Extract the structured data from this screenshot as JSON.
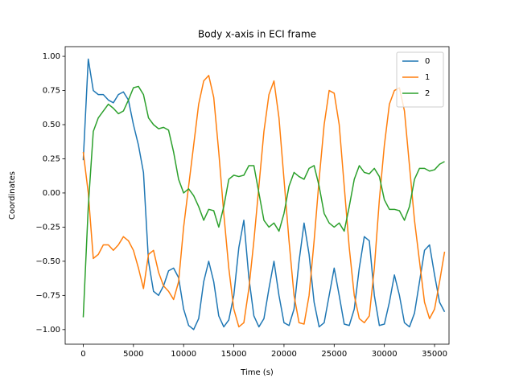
{
  "chart_data": {
    "type": "line",
    "title": "Body x-axis in ECI frame",
    "x_label": "Time (s)",
    "y_label": "Coordinates",
    "x": [
      0,
      500,
      1000,
      1500,
      2000,
      2500,
      3000,
      3500,
      4000,
      4500,
      5000,
      5500,
      6000,
      6500,
      7000,
      7500,
      8000,
      8500,
      9000,
      9500,
      10000,
      10500,
      11000,
      11500,
      12000,
      12500,
      13000,
      13500,
      14000,
      14500,
      15000,
      15500,
      16000,
      16500,
      17000,
      17500,
      18000,
      18500,
      19000,
      19500,
      20000,
      20500,
      21000,
      21500,
      22000,
      22500,
      23000,
      23500,
      24000,
      24500,
      25000,
      25500,
      26000,
      26500,
      27000,
      27500,
      28000,
      28500,
      29000,
      29500,
      30000,
      30500,
      31000,
      31500,
      32000,
      32500,
      33000,
      33500,
      34000,
      34500,
      35000,
      35500,
      36000
    ],
    "series": [
      {
        "name": "0",
        "color": "#1f77b4",
        "values": [
          0.24,
          0.98,
          0.75,
          0.72,
          0.72,
          0.68,
          0.66,
          0.72,
          0.74,
          0.68,
          0.5,
          0.35,
          0.15,
          -0.5,
          -0.72,
          -0.75,
          -0.68,
          -0.57,
          -0.55,
          -0.62,
          -0.85,
          -0.97,
          -1.0,
          -0.92,
          -0.65,
          -0.5,
          -0.65,
          -0.9,
          -0.98,
          -0.93,
          -0.75,
          -0.4,
          -0.2,
          -0.62,
          -0.9,
          -0.98,
          -0.92,
          -0.7,
          -0.5,
          -0.75,
          -0.95,
          -0.97,
          -0.85,
          -0.5,
          -0.22,
          -0.45,
          -0.8,
          -0.98,
          -0.95,
          -0.75,
          -0.55,
          -0.75,
          -0.96,
          -0.97,
          -0.85,
          -0.55,
          -0.32,
          -0.35,
          -0.75,
          -0.97,
          -0.96,
          -0.8,
          -0.6,
          -0.75,
          -0.95,
          -0.98,
          -0.88,
          -0.65,
          -0.42,
          -0.38,
          -0.6,
          -0.8,
          -0.87
        ]
      },
      {
        "name": "1",
        "color": "#ff7f0e",
        "values": [
          0.3,
          0.0,
          -0.48,
          -0.45,
          -0.38,
          -0.38,
          -0.42,
          -0.38,
          -0.32,
          -0.35,
          -0.42,
          -0.55,
          -0.7,
          -0.45,
          -0.42,
          -0.58,
          -0.68,
          -0.72,
          -0.78,
          -0.65,
          -0.25,
          0.05,
          0.35,
          0.65,
          0.82,
          0.86,
          0.7,
          0.3,
          -0.15,
          -0.55,
          -0.85,
          -0.98,
          -0.95,
          -0.7,
          -0.35,
          0.05,
          0.45,
          0.72,
          0.82,
          0.55,
          0.1,
          -0.35,
          -0.75,
          -0.95,
          -0.96,
          -0.75,
          -0.35,
          0.1,
          0.5,
          0.75,
          0.73,
          0.5,
          0.05,
          -0.4,
          -0.75,
          -0.92,
          -0.95,
          -0.9,
          -0.55,
          -0.05,
          0.35,
          0.65,
          0.75,
          0.77,
          0.6,
          0.2,
          -0.2,
          -0.5,
          -0.8,
          -0.92,
          -0.85,
          -0.65,
          -0.43
        ]
      },
      {
        "name": "2",
        "color": "#2ca02c",
        "values": [
          -0.91,
          -0.1,
          0.45,
          0.55,
          0.6,
          0.65,
          0.62,
          0.58,
          0.6,
          0.68,
          0.77,
          0.78,
          0.72,
          0.55,
          0.5,
          0.47,
          0.48,
          0.46,
          0.3,
          0.1,
          0.0,
          0.03,
          -0.02,
          -0.1,
          -0.2,
          -0.12,
          -0.13,
          -0.25,
          -0.1,
          0.1,
          0.13,
          0.12,
          0.13,
          0.2,
          0.2,
          0.0,
          -0.2,
          -0.25,
          -0.22,
          -0.28,
          -0.15,
          0.05,
          0.15,
          0.12,
          0.1,
          0.18,
          0.2,
          0.05,
          -0.15,
          -0.22,
          -0.25,
          -0.22,
          -0.28,
          -0.1,
          0.1,
          0.2,
          0.15,
          0.14,
          0.18,
          0.12,
          -0.05,
          -0.12,
          -0.12,
          -0.13,
          -0.2,
          -0.1,
          0.1,
          0.18,
          0.18,
          0.16,
          0.17,
          0.21,
          0.23
        ]
      }
    ],
    "xlim": [
      -1800,
      36440
    ],
    "ylim": [
      -1.107,
      1.071
    ],
    "xticks": [
      0,
      5000,
      10000,
      15000,
      20000,
      25000,
      30000,
      35000
    ],
    "yticks": [
      {
        "value": -1,
        "label": "−1.00"
      },
      {
        "value": -0.75,
        "label": "−0.75"
      },
      {
        "value": -0.5,
        "label": "−0.50"
      },
      {
        "value": -0.25,
        "label": "−0.25"
      },
      {
        "value": 0,
        "label": "0.00"
      },
      {
        "value": 0.25,
        "label": "0.25"
      },
      {
        "value": 0.5,
        "label": "0.50"
      },
      {
        "value": 0.75,
        "label": "0.75"
      },
      {
        "value": 1,
        "label": "1.00"
      }
    ],
    "legend": "upper right",
    "grid": false
  }
}
